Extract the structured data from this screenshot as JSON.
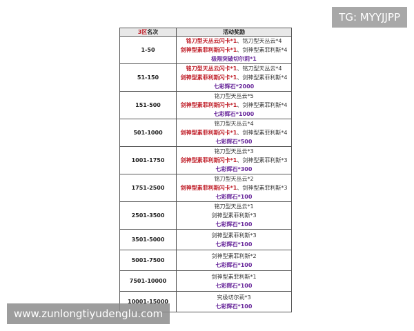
{
  "header": {
    "rank_zone": "3区",
    "rank": "名次",
    "reward": "活动奖励"
  },
  "rows": [
    {
      "rank": "1-50",
      "lines": [
        [
          {
            "text": "铭刀型天丛云闪卡*1",
            "color": "red"
          },
          {
            "text": "、铭刀型天丛云*4",
            "color": "black"
          }
        ],
        [
          {
            "text": "剑神型素菲利斯闪卡*1",
            "color": "red"
          },
          {
            "text": "、剑神型素菲利斯*4",
            "color": "black"
          }
        ],
        [
          {
            "text": "极限突破切尔莉*1",
            "color": "purple"
          }
        ]
      ]
    },
    {
      "rank": "51-150",
      "lines": [
        [
          {
            "text": "铭刀型天丛云闪卡*1",
            "color": "red"
          },
          {
            "text": "、铭刀型天丛云*4",
            "color": "black"
          }
        ],
        [
          {
            "text": "剑神型素菲利斯闪卡*1",
            "color": "red"
          },
          {
            "text": "、剑神型素菲利斯*4",
            "color": "black"
          }
        ],
        [
          {
            "text": "七彩辉石*2000",
            "color": "purple"
          }
        ]
      ]
    },
    {
      "rank": "151-500",
      "lines": [
        [
          {
            "text": "铭刀型天丛云*5",
            "color": "black"
          }
        ],
        [
          {
            "text": "剑神型素菲利斯闪卡*1",
            "color": "red"
          },
          {
            "text": "、剑神型素菲利斯*4",
            "color": "black"
          }
        ],
        [
          {
            "text": "七彩辉石*1000",
            "color": "purple"
          }
        ]
      ]
    },
    {
      "rank": "501-1000",
      "lines": [
        [
          {
            "text": "铭刀型天丛云*4",
            "color": "black"
          }
        ],
        [
          {
            "text": "剑神型素菲利斯闪卡*1",
            "color": "red"
          },
          {
            "text": "、剑神型素菲利斯*4",
            "color": "black"
          }
        ],
        [
          {
            "text": "七彩辉石*500",
            "color": "purple"
          }
        ]
      ]
    },
    {
      "rank": "1001-1750",
      "lines": [
        [
          {
            "text": "铭刀型天丛云*3",
            "color": "black"
          }
        ],
        [
          {
            "text": "剑神型素菲利斯闪卡*1",
            "color": "red"
          },
          {
            "text": "、剑神型素菲利斯*3",
            "color": "black"
          }
        ],
        [
          {
            "text": "七彩辉石*300",
            "color": "purple"
          }
        ]
      ]
    },
    {
      "rank": "1751-2500",
      "lines": [
        [
          {
            "text": "铭刀型天丛云*2",
            "color": "black"
          }
        ],
        [
          {
            "text": "剑神型素菲利斯闪卡*1",
            "color": "red"
          },
          {
            "text": "、剑神型素菲利斯*3",
            "color": "black"
          }
        ],
        [
          {
            "text": "七彩辉石*100",
            "color": "purple"
          }
        ]
      ]
    },
    {
      "rank": "2501-3500",
      "lines": [
        [
          {
            "text": "铭刀型天丛云*1",
            "color": "black"
          }
        ],
        [
          {
            "text": "剑神型素菲利斯*3",
            "color": "black"
          }
        ],
        [
          {
            "text": "七彩辉石*100",
            "color": "purple"
          }
        ]
      ]
    },
    {
      "rank": "3501-5000",
      "lines": [
        [
          {
            "text": "剑神型素菲利斯*3",
            "color": "black"
          }
        ],
        [
          {
            "text": "七彩辉石*100",
            "color": "purple"
          }
        ]
      ]
    },
    {
      "rank": "5001-7500",
      "lines": [
        [
          {
            "text": "剑神型素菲利斯*2",
            "color": "black"
          }
        ],
        [
          {
            "text": "七彩辉石*100",
            "color": "purple"
          }
        ]
      ]
    },
    {
      "rank": "7501-10000",
      "lines": [
        [
          {
            "text": "剑神型素菲利斯*1",
            "color": "black"
          }
        ],
        [
          {
            "text": "七彩辉石*100",
            "color": "purple"
          }
        ]
      ]
    },
    {
      "rank": "10001-15000",
      "lines": [
        [
          {
            "text": "究极切尔莉*3",
            "color": "black"
          }
        ],
        [
          {
            "text": "七彩辉石*100",
            "color": "purple"
          }
        ]
      ]
    }
  ],
  "watermarks": {
    "top": "TG: MYYJJPP",
    "bottom": "www.zunlongtiyudenglu.com"
  }
}
